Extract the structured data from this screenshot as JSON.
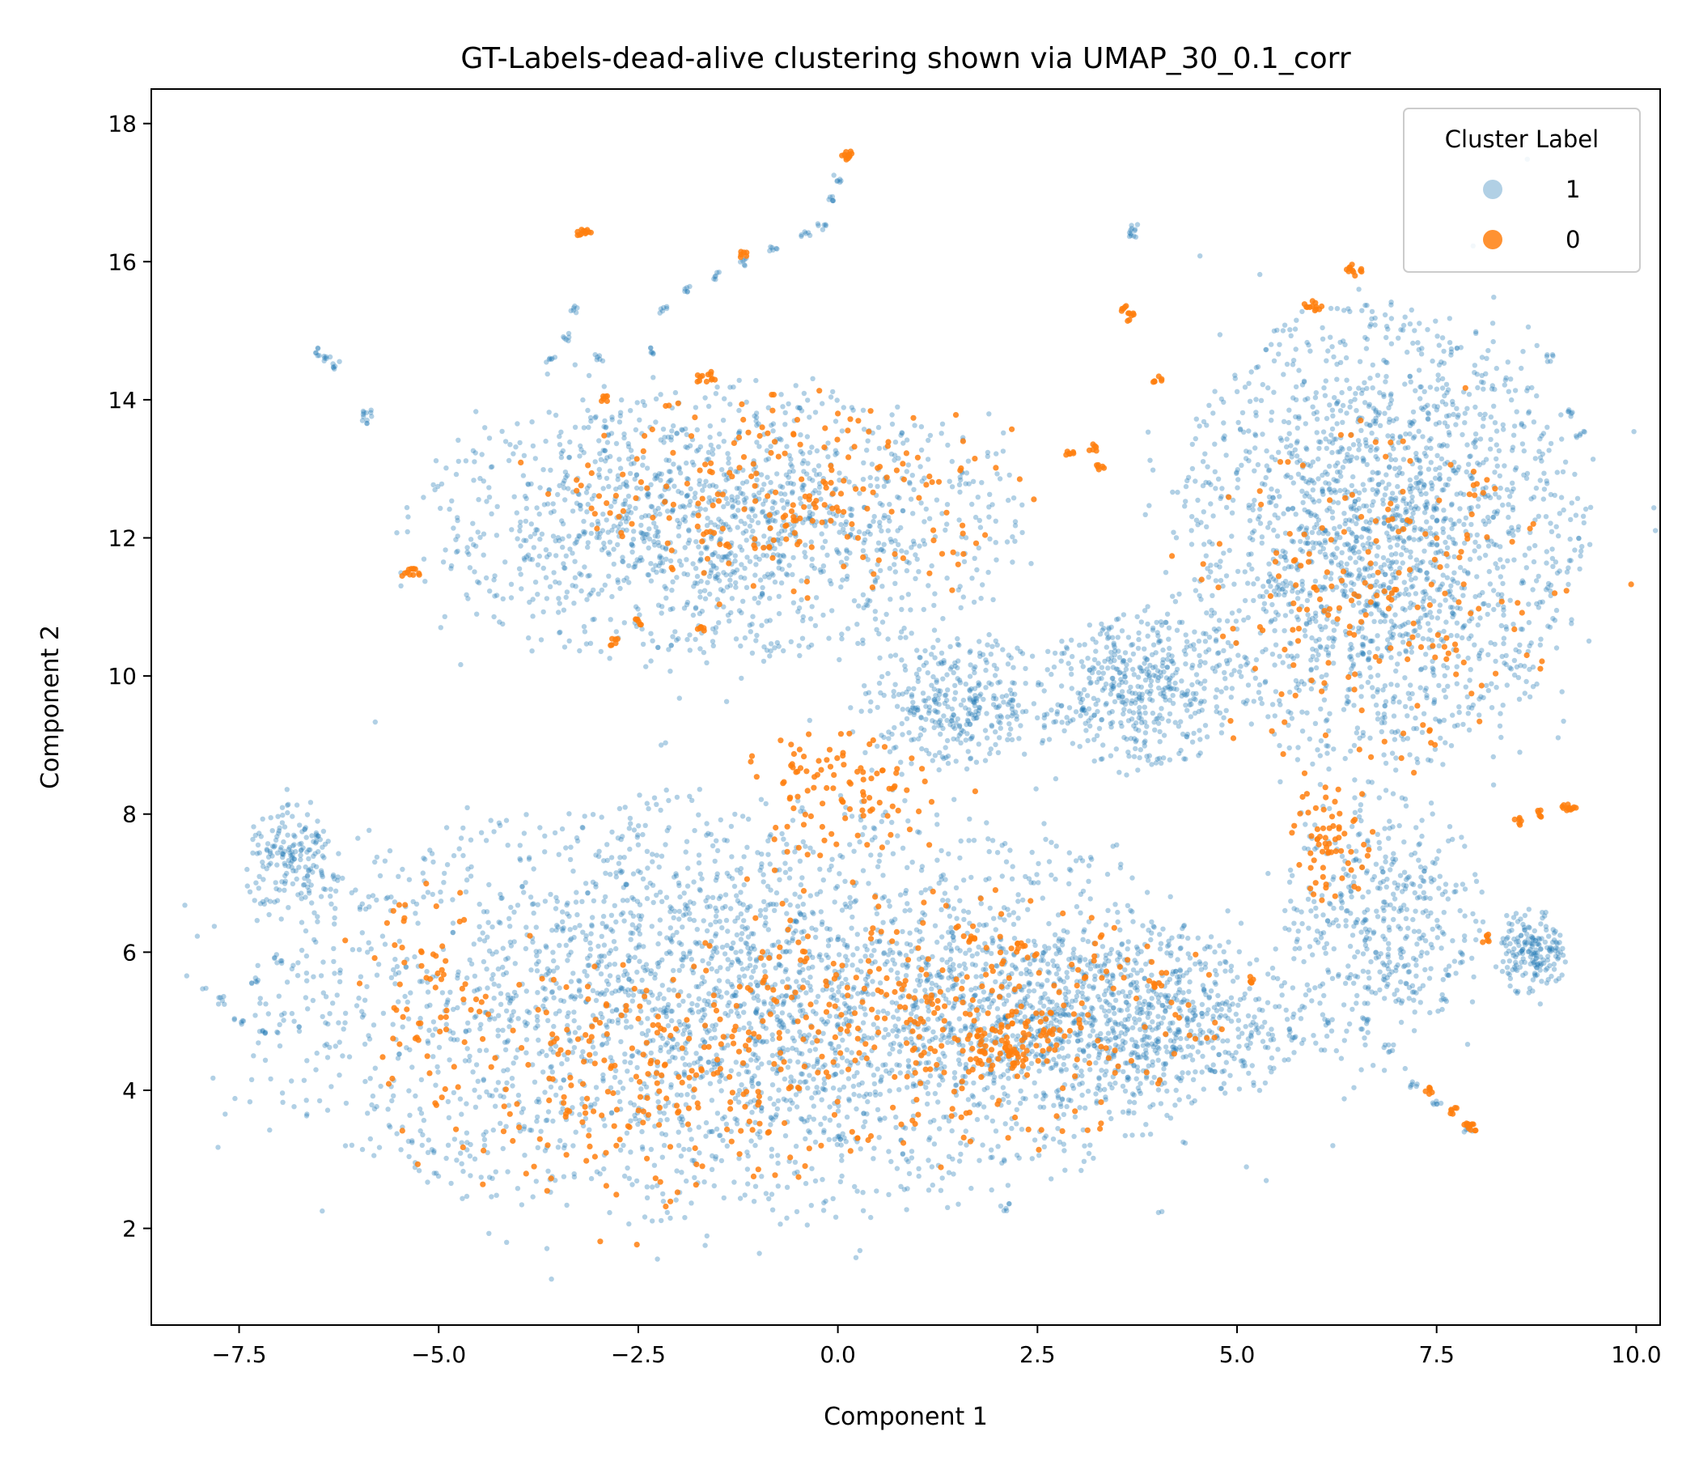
{
  "chart_data": {
    "type": "scatter",
    "title": "GT-Labels-dead-alive clustering shown via UMAP_30_0.1_corr",
    "xlabel": "Component 1",
    "ylabel": "Component 2",
    "xlim": [
      -8.6,
      10.3
    ],
    "ylim": [
      0.6,
      18.5
    ],
    "xticks": [
      -7.5,
      -5.0,
      -2.5,
      0.0,
      2.5,
      5.0,
      7.5,
      10.0
    ],
    "xtick_labels": [
      "−7.5",
      "−5.0",
      "−2.5",
      "0.0",
      "2.5",
      "5.0",
      "7.5",
      "10.0"
    ],
    "yticks": [
      2,
      4,
      6,
      8,
      10,
      12,
      14,
      16,
      18
    ],
    "ytick_labels": [
      "2",
      "4",
      "6",
      "8",
      "10",
      "12",
      "14",
      "16",
      "18"
    ],
    "grid": false,
    "legend": {
      "title": "Cluster Label",
      "position": "top-right"
    },
    "series": [
      {
        "name": "1",
        "color": "#1f77b4",
        "opacity": 0.35,
        "regions": [
          {
            "cx": -1.2,
            "cy": 5.2,
            "rx": 5.8,
            "ry": 2.9,
            "weight": 0.34
          },
          {
            "cx": -1.5,
            "cy": 12.2,
            "rx": 3.6,
            "ry": 1.9,
            "weight": 0.16
          },
          {
            "cx": 6.8,
            "cy": 12.0,
            "rx": 2.4,
            "ry": 3.2,
            "weight": 0.22
          },
          {
            "cx": 3.4,
            "cy": 5.0,
            "rx": 2.6,
            "ry": 1.3,
            "weight": 0.1
          },
          {
            "cx": 6.8,
            "cy": 6.5,
            "rx": 1.2,
            "ry": 1.8,
            "weight": 0.05
          },
          {
            "cx": 8.7,
            "cy": 6.0,
            "rx": 0.4,
            "ry": 0.6,
            "weight": 0.02
          },
          {
            "cx": -6.8,
            "cy": 7.3,
            "rx": 0.6,
            "ry": 0.8,
            "weight": 0.02
          },
          {
            "cx": 1.5,
            "cy": 9.6,
            "rx": 1.2,
            "ry": 0.9,
            "weight": 0.04
          },
          {
            "cx": 3.8,
            "cy": 9.8,
            "rx": 1.1,
            "ry": 1.1,
            "weight": 0.05
          }
        ],
        "points": [
          [
            -7.7,
            5.3
          ],
          [
            -7.5,
            5.0
          ],
          [
            -7.2,
            4.85
          ],
          [
            -7.3,
            5.6
          ],
          [
            -7.0,
            5.9
          ],
          [
            -6.5,
            14.7
          ],
          [
            -6.4,
            14.6
          ],
          [
            -6.3,
            14.5
          ],
          [
            -5.9,
            13.8
          ],
          [
            -5.9,
            13.7
          ],
          [
            0.0,
            17.2
          ],
          [
            -0.1,
            16.9
          ],
          [
            -0.2,
            16.5
          ],
          [
            -0.4,
            16.4
          ],
          [
            -0.8,
            16.2
          ],
          [
            -1.2,
            16.0
          ],
          [
            -1.5,
            15.8
          ],
          [
            -1.9,
            15.6
          ],
          [
            -2.2,
            15.3
          ],
          [
            -3.3,
            15.3
          ],
          [
            -3.4,
            14.9
          ],
          [
            -3.6,
            14.6
          ],
          [
            -3.0,
            14.6
          ],
          [
            -2.3,
            14.7
          ],
          [
            3.7,
            16.5
          ],
          [
            3.7,
            16.4
          ],
          [
            7.9,
            3.45
          ],
          [
            7.5,
            3.8
          ],
          [
            7.2,
            4.1
          ],
          [
            6.9,
            4.6
          ],
          [
            6.6,
            5.0
          ],
          [
            9.3,
            13.5
          ],
          [
            9.2,
            13.8
          ],
          [
            8.9,
            14.6
          ],
          [
            2.1,
            2.3
          ],
          [
            0.0,
            3.3
          ]
        ]
      },
      {
        "name": "0",
        "color": "#ff7f0e",
        "opacity": 0.85,
        "regions": [
          {
            "cx": 1.0,
            "cy": 5.0,
            "rx": 3.6,
            "ry": 1.8,
            "weight": 0.28
          },
          {
            "cx": -2.6,
            "cy": 4.2,
            "rx": 2.8,
            "ry": 1.8,
            "weight": 0.17
          },
          {
            "cx": -0.6,
            "cy": 12.6,
            "rx": 2.8,
            "ry": 1.4,
            "weight": 0.17
          },
          {
            "cx": 6.8,
            "cy": 11.0,
            "rx": 2.2,
            "ry": 2.4,
            "weight": 0.15
          },
          {
            "cx": 0.0,
            "cy": 8.3,
            "rx": 1.2,
            "ry": 0.9,
            "weight": 0.08
          },
          {
            "cx": 6.2,
            "cy": 7.6,
            "rx": 0.5,
            "ry": 0.9,
            "weight": 0.05
          },
          {
            "cx": 2.2,
            "cy": 4.7,
            "rx": 0.6,
            "ry": 0.5,
            "weight": 0.06
          },
          {
            "cx": -5.2,
            "cy": 5.5,
            "rx": 0.8,
            "ry": 1.4,
            "weight": 0.04
          }
        ],
        "points": [
          [
            0.15,
            17.55
          ],
          [
            0.1,
            17.5
          ],
          [
            -3.2,
            16.4
          ],
          [
            -3.15,
            16.45
          ],
          [
            -1.2,
            16.1
          ],
          [
            -5.4,
            11.5
          ],
          [
            -5.3,
            11.5
          ],
          [
            -2.9,
            14.0
          ],
          [
            -1.7,
            14.3
          ],
          [
            -1.6,
            14.35
          ],
          [
            3.6,
            15.3
          ],
          [
            3.65,
            15.2
          ],
          [
            6.4,
            15.9
          ],
          [
            6.5,
            15.85
          ],
          [
            5.9,
            15.4
          ],
          [
            6.0,
            15.35
          ],
          [
            9.1,
            8.1
          ],
          [
            9.2,
            8.1
          ],
          [
            8.8,
            8.0
          ],
          [
            8.5,
            7.9
          ],
          [
            7.95,
            3.45
          ],
          [
            7.9,
            3.5
          ],
          [
            7.7,
            3.7
          ],
          [
            7.4,
            4.0
          ],
          [
            8.1,
            6.2
          ],
          [
            3.2,
            13.3
          ],
          [
            3.3,
            13.0
          ],
          [
            2.9,
            13.2
          ],
          [
            1.7,
            6.2
          ],
          [
            2.3,
            6.1
          ],
          [
            4.0,
            5.5
          ],
          [
            5.2,
            5.6
          ],
          [
            -2.5,
            10.8
          ],
          [
            -2.8,
            10.5
          ],
          [
            -1.7,
            10.7
          ],
          [
            4.0,
            14.3
          ]
        ]
      }
    ]
  }
}
